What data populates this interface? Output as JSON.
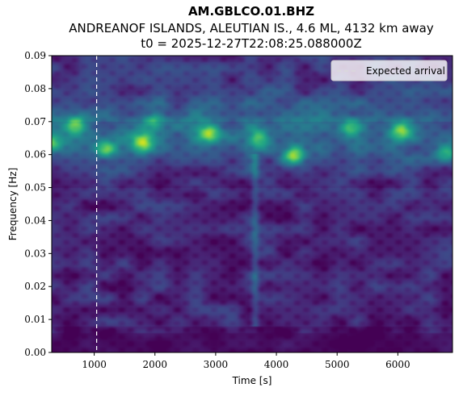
{
  "chart_data": {
    "type": "heatmap",
    "title": "AM.GBLCO.01.BHZ",
    "subtitle": "ANDREANOF ISLANDS, ALEUTIAN IS., 4.6 ML, 4132 km away",
    "subtitle2": "t0 = 2025-12-27T22:08:25.088000Z",
    "xlabel": "Time [s]",
    "ylabel": "Frequency [Hz]",
    "xlim": [
      300,
      6900
    ],
    "ylim": [
      0,
      0.09
    ],
    "x_ticks": [
      1000,
      2000,
      3000,
      4000,
      5000,
      6000
    ],
    "x_tick_labels": [
      "1000",
      "2000",
      "3000",
      "4000",
      "5000",
      "6000"
    ],
    "y_ticks": [
      0,
      0.01,
      0.02,
      0.03,
      0.04,
      0.05,
      0.06,
      0.07,
      0.08,
      0.09
    ],
    "y_tick_labels": [
      "0.00",
      "0.01",
      "0.02",
      "0.03",
      "0.04",
      "0.05",
      "0.06",
      "0.07",
      "0.08",
      "0.09"
    ],
    "colormap": "viridis",
    "expected_arrival": 1040,
    "legend": {
      "label": "Expected arrival",
      "position": "upper right"
    },
    "energy_band_hz": [
      0.058,
      0.072
    ],
    "hotspots": [
      {
        "t": 300,
        "f": 0.0635,
        "level": 0.8
      },
      {
        "t": 700,
        "f": 0.069,
        "level": 0.7
      },
      {
        "t": 1200,
        "f": 0.0615,
        "level": 0.65
      },
      {
        "t": 1800,
        "f": 0.0635,
        "level": 0.8
      },
      {
        "t": 2000,
        "f": 0.07,
        "level": 0.6
      },
      {
        "t": 2900,
        "f": 0.0665,
        "level": 0.85
      },
      {
        "t": 3700,
        "f": 0.065,
        "level": 0.7
      },
      {
        "t": 4300,
        "f": 0.06,
        "level": 0.95
      },
      {
        "t": 5200,
        "f": 0.068,
        "level": 0.55
      },
      {
        "t": 6050,
        "f": 0.0675,
        "level": 0.8
      },
      {
        "t": 6800,
        "f": 0.06,
        "level": 0.65
      }
    ],
    "vertical_streak": {
      "t": 3650,
      "f_range": [
        0.008,
        0.06
      ],
      "level": 0.35
    }
  }
}
